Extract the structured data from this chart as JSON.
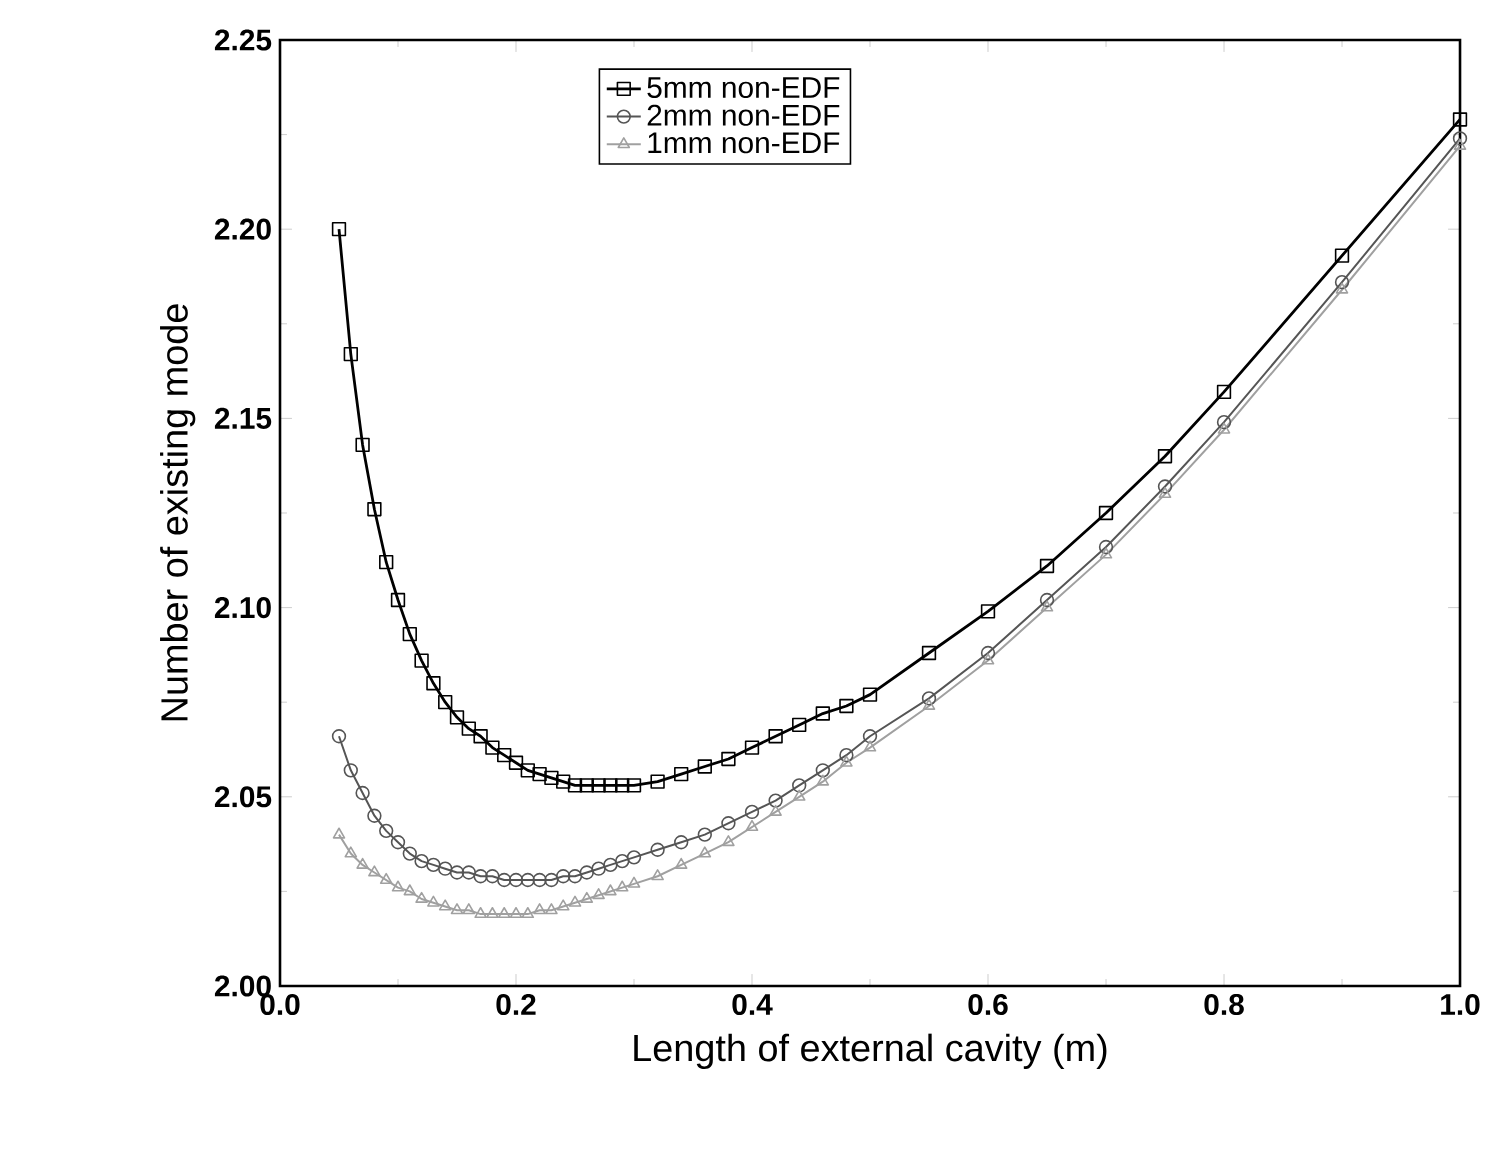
{
  "chart_data": {
    "type": "line",
    "xlabel": "Length of external cavity (m)",
    "ylabel": "Number of existing mode",
    "xlim": [
      0.0,
      1.0
    ],
    "ylim": [
      2.0,
      2.25
    ],
    "xticks": [
      {
        "value": 0.0,
        "label": "0.0"
      },
      {
        "value": 0.2,
        "label": "0.2"
      },
      {
        "value": 0.4,
        "label": "0.4"
      },
      {
        "value": 0.6,
        "label": "0.6"
      },
      {
        "value": 0.8,
        "label": "0.8"
      },
      {
        "value": 1.0,
        "label": "1.0"
      }
    ],
    "yticks": [
      {
        "value": 2.0,
        "label": "2.00"
      },
      {
        "value": 2.05,
        "label": "2.05"
      },
      {
        "value": 2.1,
        "label": "2.10"
      },
      {
        "value": 2.15,
        "label": "2.15"
      },
      {
        "value": 2.2,
        "label": "2.20"
      },
      {
        "value": 2.25,
        "label": "2.25"
      }
    ],
    "x": [
      0.05,
      0.06,
      0.07,
      0.08,
      0.09,
      0.1,
      0.11,
      0.12,
      0.13,
      0.14,
      0.15,
      0.16,
      0.17,
      0.18,
      0.19,
      0.2,
      0.21,
      0.22,
      0.23,
      0.24,
      0.25,
      0.26,
      0.27,
      0.28,
      0.29,
      0.3,
      0.32,
      0.34,
      0.36,
      0.38,
      0.4,
      0.42,
      0.44,
      0.46,
      0.48,
      0.5,
      0.55,
      0.6,
      0.65,
      0.7,
      0.75,
      0.8,
      0.9,
      1.0
    ],
    "legend": "top",
    "grid": false,
    "line_style": "solid",
    "series": [
      {
        "name": "5mm non-EDF",
        "color": "#000000",
        "marker": "square",
        "values": [
          2.2,
          2.167,
          2.143,
          2.126,
          2.112,
          2.102,
          2.093,
          2.086,
          2.08,
          2.075,
          2.071,
          2.068,
          2.066,
          2.063,
          2.061,
          2.059,
          2.057,
          2.056,
          2.055,
          2.054,
          2.053,
          2.053,
          2.053,
          2.053,
          2.053,
          2.053,
          2.054,
          2.056,
          2.058,
          2.06,
          2.063,
          2.066,
          2.069,
          2.072,
          2.074,
          2.077,
          2.088,
          2.099,
          2.111,
          2.125,
          2.14,
          2.157,
          2.193,
          2.229
        ]
      },
      {
        "name": "2mm non-EDF",
        "color": "#555555",
        "marker": "circle",
        "values": [
          2.066,
          2.057,
          2.051,
          2.045,
          2.041,
          2.038,
          2.035,
          2.033,
          2.032,
          2.031,
          2.03,
          2.03,
          2.029,
          2.029,
          2.028,
          2.028,
          2.028,
          2.028,
          2.028,
          2.029,
          2.029,
          2.03,
          2.031,
          2.032,
          2.033,
          2.034,
          2.036,
          2.038,
          2.04,
          2.043,
          2.046,
          2.049,
          2.053,
          2.057,
          2.061,
          2.066,
          2.076,
          2.088,
          2.102,
          2.116,
          2.132,
          2.149,
          2.186,
          2.224
        ]
      },
      {
        "name": "1mm non-EDF",
        "color": "#a0a0a0",
        "marker": "triangle",
        "values": [
          2.04,
          2.035,
          2.032,
          2.03,
          2.028,
          2.026,
          2.025,
          2.023,
          2.022,
          2.021,
          2.02,
          2.02,
          2.019,
          2.019,
          2.019,
          2.019,
          2.019,
          2.02,
          2.02,
          2.021,
          2.022,
          2.023,
          2.024,
          2.025,
          2.026,
          2.027,
          2.029,
          2.032,
          2.035,
          2.038,
          2.042,
          2.046,
          2.05,
          2.054,
          2.059,
          2.063,
          2.074,
          2.086,
          2.1,
          2.114,
          2.13,
          2.147,
          2.184,
          2.222
        ]
      }
    ]
  }
}
